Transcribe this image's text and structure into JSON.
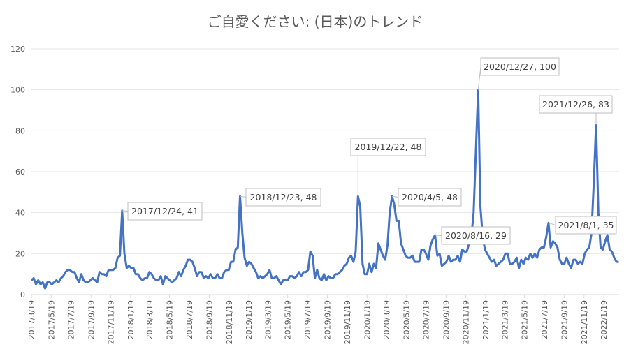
{
  "chart_data": {
    "type": "line",
    "title": "ご自愛ください: (日本)のトレンド",
    "xlabel": "",
    "ylabel": "",
    "ylim": [
      0,
      120
    ],
    "yticks": [
      "0",
      "20",
      "40",
      "60",
      "80",
      "100",
      "120"
    ],
    "grid": true,
    "legend": "none",
    "x_start": "2017/3/19",
    "x_interval": "weekly",
    "xtick_labels": [
      "2017/3/19",
      "2017/5/19",
      "2017/7/19",
      "2017/9/19",
      "2017/11/19",
      "2018/1/19",
      "2018/3/19",
      "2018/5/19",
      "2018/7/19",
      "2018/9/19",
      "2018/11/19",
      "2019/1/19",
      "2019/3/19",
      "2019/5/19",
      "2019/7/19",
      "2019/9/19",
      "2019/11/19",
      "2020/1/19",
      "2020/3/19",
      "2020/5/19",
      "2020/7/19",
      "2020/9/19",
      "2020/11/19",
      "2021/1/19",
      "2021/3/19",
      "2021/5/19",
      "2021/7/19",
      "2021/9/19",
      "2021/11/19",
      "2022/1/19"
    ],
    "series": [
      {
        "color": "#4472C4",
        "values": [
          7,
          8,
          5,
          7,
          5,
          6,
          3,
          6,
          6,
          5,
          6,
          7,
          6,
          8,
          9,
          11,
          12,
          12,
          11,
          11,
          8,
          6,
          10,
          7,
          6,
          6,
          7,
          8,
          7,
          6,
          11,
          10,
          10,
          9,
          12,
          12,
          12,
          13,
          18,
          19,
          41,
          20,
          13,
          14,
          13,
          13,
          10,
          10,
          8,
          7,
          8,
          8,
          11,
          10,
          8,
          7,
          7,
          9,
          5,
          9,
          8,
          7,
          6,
          7,
          8,
          11,
          9,
          12,
          14,
          17,
          17,
          16,
          13,
          9,
          11,
          11,
          8,
          9,
          8,
          10,
          8,
          8,
          10,
          8,
          8,
          11,
          12,
          12,
          16,
          16,
          22,
          23,
          48,
          30,
          18,
          14,
          16,
          15,
          13,
          11,
          8,
          9,
          8,
          9,
          10,
          12,
          8,
          8,
          9,
          7,
          5,
          7,
          7,
          7,
          9,
          9,
          8,
          9,
          11,
          9,
          11,
          11,
          12,
          21,
          19,
          8,
          12,
          8,
          7,
          10,
          7,
          9,
          8,
          8,
          10,
          10,
          11,
          12,
          14,
          15,
          18,
          19,
          16,
          21,
          48,
          43,
          15,
          10,
          10,
          15,
          11,
          15,
          13,
          25,
          22,
          19,
          17,
          24,
          40,
          48,
          44,
          36,
          36,
          25,
          22,
          19,
          18,
          18,
          19,
          16,
          16,
          16,
          22,
          22,
          20,
          17,
          24,
          27,
          29,
          19,
          20,
          14,
          15,
          16,
          19,
          16,
          17,
          17,
          19,
          16,
          22,
          21,
          21,
          25,
          28,
          40,
          70,
          100,
          43,
          28,
          22,
          20,
          18,
          16,
          17,
          14,
          15,
          16,
          17,
          20,
          20,
          15,
          15,
          16,
          18,
          13,
          17,
          15,
          18,
          17,
          20,
          18,
          20,
          18,
          22,
          23,
          23,
          28,
          35,
          23,
          26,
          25,
          23,
          17,
          15,
          15,
          18,
          15,
          13,
          17,
          17,
          15,
          16,
          15,
          20,
          22,
          23,
          30,
          55,
          83,
          40,
          23,
          22,
          26,
          29,
          22,
          21,
          18,
          16,
          16
        ]
      }
    ],
    "annotations": [
      {
        "label": "2017/12/24, 41",
        "date": "2017/12/24",
        "value": 41
      },
      {
        "label": "2018/12/23, 48",
        "date": "2018/12/23",
        "value": 48
      },
      {
        "label": "2019/12/22, 48",
        "date": "2019/12/22",
        "value": 48
      },
      {
        "label": "2020/4/5, 48",
        "date": "2020/4/5",
        "value": 48
      },
      {
        "label": "2020/8/16, 29",
        "date": "2020/8/16",
        "value": 29
      },
      {
        "label": "2020/12/27, 100",
        "date": "2020/12/27",
        "value": 100
      },
      {
        "label": "2021/12/26, 83",
        "date": "2021/12/26",
        "value": 83
      },
      {
        "label": "2021/8/1, 35",
        "date": "2021/8/1",
        "value": 35
      }
    ]
  }
}
